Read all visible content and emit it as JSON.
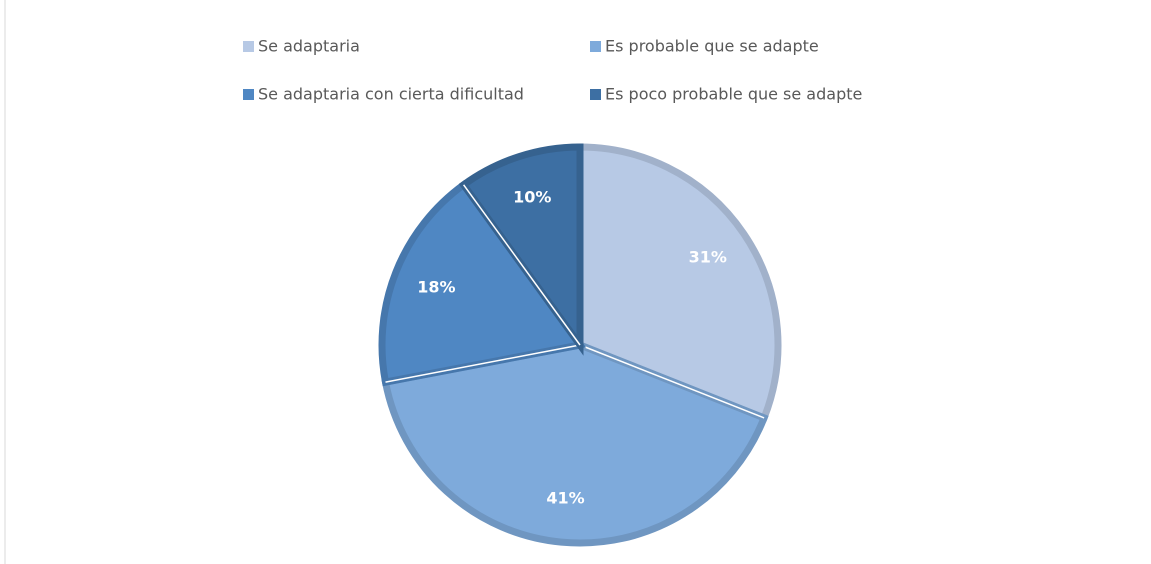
{
  "chart_data": {
    "type": "pie",
    "categories": [
      "Se adaptaria",
      "Es probable que se adapte",
      "Se adaptaria con cierta dificultad",
      "Es poco probable que se adapte"
    ],
    "values": [
      31,
      41,
      18,
      10
    ],
    "value_labels": [
      "31%",
      "41%",
      "18%",
      "10%"
    ],
    "colors": [
      "#b7c9e5",
      "#7eaadb",
      "#4f87c3",
      "#3d6fa3"
    ],
    "legend": "top"
  }
}
